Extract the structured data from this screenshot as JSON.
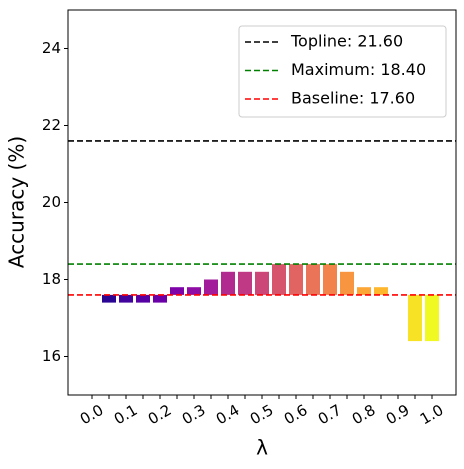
{
  "chart_data": {
    "type": "bar",
    "x_label": "λ",
    "y_label": "Accuracy (%)",
    "categories": [
      "0.0",
      null,
      "0.1",
      null,
      "0.2",
      null,
      "0.3",
      null,
      "0.4",
      null,
      "0.5",
      null,
      "0.6",
      null,
      "0.7",
      null,
      "0.8",
      null,
      "0.9",
      null,
      "1.0"
    ],
    "values": [
      17.6,
      17.4,
      17.4,
      17.4,
      17.4,
      17.8,
      17.8,
      18.0,
      18.2,
      18.2,
      18.2,
      18.4,
      18.4,
      18.4,
      18.4,
      18.2,
      17.8,
      17.8,
      17.6,
      16.4,
      16.4
    ],
    "colors": [
      "#0d0887",
      "#2a0593",
      "#41049d",
      "#5601a4",
      "#6a00a8",
      "#7e03a8",
      "#8f0da4",
      "#a11b9b",
      "#b12a90",
      "#bf3984",
      "#cc4778",
      "#d6556d",
      "#e16462",
      "#ea7457",
      "#f2844b",
      "#f89540",
      "#fca636",
      "#feb72d",
      "#fcce25",
      "#f7e225",
      "#f0f921"
    ],
    "bottom": 17.6,
    "lines": [
      {
        "name": "Topline: 21.60",
        "value": 21.6,
        "color": "#000000"
      },
      {
        "name": "Maximum: 18.40",
        "value": 18.4,
        "color": "#008000"
      },
      {
        "name": "Baseline: 17.60",
        "value": 17.6,
        "color": "#ff0000"
      }
    ],
    "legend": "upper right",
    "ylim": [
      15,
      25
    ],
    "yticks": [
      16,
      18,
      20,
      22,
      24
    ]
  }
}
